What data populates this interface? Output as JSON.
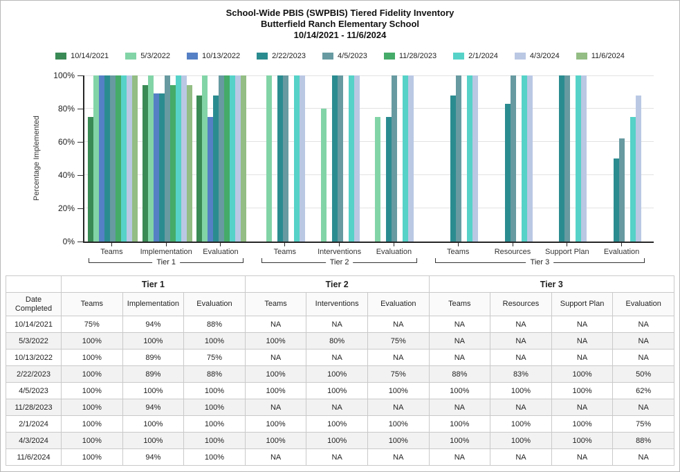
{
  "chart_data": {
    "type": "bar",
    "title": "School-Wide PBIS (SWPBIS) Tiered Fidelity Inventory",
    "subtitle": "Butterfield Ranch Elementary School",
    "date_range": "10/14/2021 - 11/6/2024",
    "ylabel": "Percentage Implemented",
    "ylim": [
      0,
      100
    ],
    "yticks": [
      0,
      20,
      40,
      60,
      80,
      100
    ],
    "ytick_suffix": "%",
    "grid": "horizontal",
    "legend_position": "top",
    "groups": [
      {
        "tier": "Tier 1",
        "categories": [
          "Teams",
          "Implementation",
          "Evaluation"
        ]
      },
      {
        "tier": "Tier 2",
        "categories": [
          "Teams",
          "Interventions",
          "Evaluation"
        ]
      },
      {
        "tier": "Tier 3",
        "categories": [
          "Teams",
          "Resources",
          "Support Plan",
          "Evaluation"
        ]
      }
    ],
    "series": [
      {
        "name": "10/14/2021",
        "color": "#3a8a55",
        "values": [
          75,
          94,
          88,
          null,
          null,
          null,
          null,
          null,
          null,
          null
        ]
      },
      {
        "name": "5/3/2022",
        "color": "#82d4a7",
        "values": [
          100,
          100,
          100,
          100,
          80,
          75,
          null,
          null,
          null,
          null
        ]
      },
      {
        "name": "10/13/2022",
        "color": "#5580c5",
        "values": [
          100,
          89,
          75,
          null,
          null,
          null,
          null,
          null,
          null,
          null
        ]
      },
      {
        "name": "2/22/2023",
        "color": "#2b8c90",
        "values": [
          100,
          89,
          88,
          100,
          100,
          75,
          88,
          83,
          100,
          50
        ]
      },
      {
        "name": "4/5/2023",
        "color": "#679aa1",
        "values": [
          100,
          100,
          100,
          100,
          100,
          100,
          100,
          100,
          100,
          62
        ]
      },
      {
        "name": "11/28/2023",
        "color": "#45ab68",
        "values": [
          100,
          94,
          100,
          null,
          null,
          null,
          null,
          null,
          null,
          null
        ]
      },
      {
        "name": "2/1/2024",
        "color": "#56d2c8",
        "values": [
          100,
          100,
          100,
          100,
          100,
          100,
          100,
          100,
          100,
          75
        ]
      },
      {
        "name": "4/3/2024",
        "color": "#bac8e4",
        "values": [
          100,
          100,
          100,
          100,
          100,
          100,
          100,
          100,
          100,
          88
        ]
      },
      {
        "name": "11/6/2024",
        "color": "#93bd84",
        "values": [
          100,
          94,
          100,
          null,
          null,
          null,
          null,
          null,
          null,
          null
        ]
      }
    ]
  },
  "table": {
    "date_header": "Date Completed",
    "tier_headers": [
      {
        "label": "Tier 1",
        "colspan": 3
      },
      {
        "label": "Tier 2",
        "colspan": 3
      },
      {
        "label": "Tier 3",
        "colspan": 4
      }
    ],
    "column_headers": [
      "Teams",
      "Implementation",
      "Evaluation",
      "Teams",
      "Interventions",
      "Evaluation",
      "Teams",
      "Resources",
      "Support Plan",
      "Evaluation"
    ],
    "rows": [
      {
        "date": "10/14/2021",
        "values": [
          "75%",
          "94%",
          "88%",
          "NA",
          "NA",
          "NA",
          "NA",
          "NA",
          "NA",
          "NA"
        ]
      },
      {
        "date": "5/3/2022",
        "values": [
          "100%",
          "100%",
          "100%",
          "100%",
          "80%",
          "75%",
          "NA",
          "NA",
          "NA",
          "NA"
        ]
      },
      {
        "date": "10/13/2022",
        "values": [
          "100%",
          "89%",
          "75%",
          "NA",
          "NA",
          "NA",
          "NA",
          "NA",
          "NA",
          "NA"
        ]
      },
      {
        "date": "2/22/2023",
        "values": [
          "100%",
          "89%",
          "88%",
          "100%",
          "100%",
          "75%",
          "88%",
          "83%",
          "100%",
          "50%"
        ]
      },
      {
        "date": "4/5/2023",
        "values": [
          "100%",
          "100%",
          "100%",
          "100%",
          "100%",
          "100%",
          "100%",
          "100%",
          "100%",
          "62%"
        ]
      },
      {
        "date": "11/28/2023",
        "values": [
          "100%",
          "94%",
          "100%",
          "NA",
          "NA",
          "NA",
          "NA",
          "NA",
          "NA",
          "NA"
        ]
      },
      {
        "date": "2/1/2024",
        "values": [
          "100%",
          "100%",
          "100%",
          "100%",
          "100%",
          "100%",
          "100%",
          "100%",
          "100%",
          "75%"
        ]
      },
      {
        "date": "4/3/2024",
        "values": [
          "100%",
          "100%",
          "100%",
          "100%",
          "100%",
          "100%",
          "100%",
          "100%",
          "100%",
          "88%"
        ]
      },
      {
        "date": "11/6/2024",
        "values": [
          "100%",
          "94%",
          "100%",
          "NA",
          "NA",
          "NA",
          "NA",
          "NA",
          "NA",
          "NA"
        ]
      }
    ]
  }
}
